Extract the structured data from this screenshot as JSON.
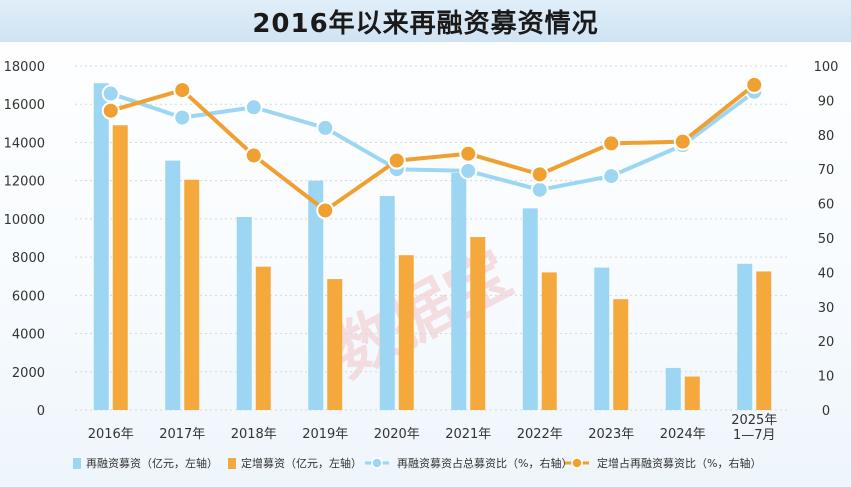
{
  "title": "2016年以来再融资募资情况",
  "watermark": "数据宝",
  "colors": {
    "bar_total": "#9dd6f2",
    "bar_private": "#f5a93d",
    "line_total": "#9dd6f2",
    "line_private": "#f0a030",
    "grid": "#d8d8d8"
  },
  "chart_data": {
    "type": "bar",
    "categories": [
      "2016年",
      "2017年",
      "2018年",
      "2019年",
      "2020年",
      "2021年",
      "2022年",
      "2023年",
      "2024年",
      "2025年\n1—7月"
    ],
    "y_left": {
      "ticks": [
        0,
        2000,
        4000,
        6000,
        8000,
        10000,
        12000,
        14000,
        16000,
        18000
      ],
      "ylim": [
        0,
        18000
      ]
    },
    "y_right": {
      "ticks": [
        0,
        10,
        20,
        30,
        40,
        50,
        60,
        70,
        80,
        90,
        100
      ],
      "ylim": [
        0,
        100
      ]
    },
    "grid": true,
    "legend_position": "bottom",
    "series": [
      {
        "name": "再融资募资（亿元，左轴）",
        "kind": "bar",
        "axis": "left",
        "values": [
          17100,
          13050,
          10100,
          12000,
          11200,
          12400,
          10550,
          7450,
          2200,
          7650
        ]
      },
      {
        "name": "定增募资（亿元，左轴）",
        "kind": "bar",
        "axis": "left",
        "values": [
          14900,
          12050,
          7500,
          6850,
          8100,
          9050,
          7200,
          5800,
          1750,
          7250
        ]
      },
      {
        "name": "再融资募资占总募资比（%，右轴）",
        "kind": "line",
        "axis": "right",
        "values": [
          92,
          85,
          88,
          82,
          70,
          69.5,
          64,
          68,
          77,
          92.5
        ]
      },
      {
        "name": "定增占再融资募资比（%，右轴）",
        "kind": "line",
        "axis": "right",
        "values": [
          87,
          93,
          74,
          58,
          72.5,
          74.5,
          68.5,
          77.5,
          78,
          94.5
        ]
      }
    ]
  }
}
